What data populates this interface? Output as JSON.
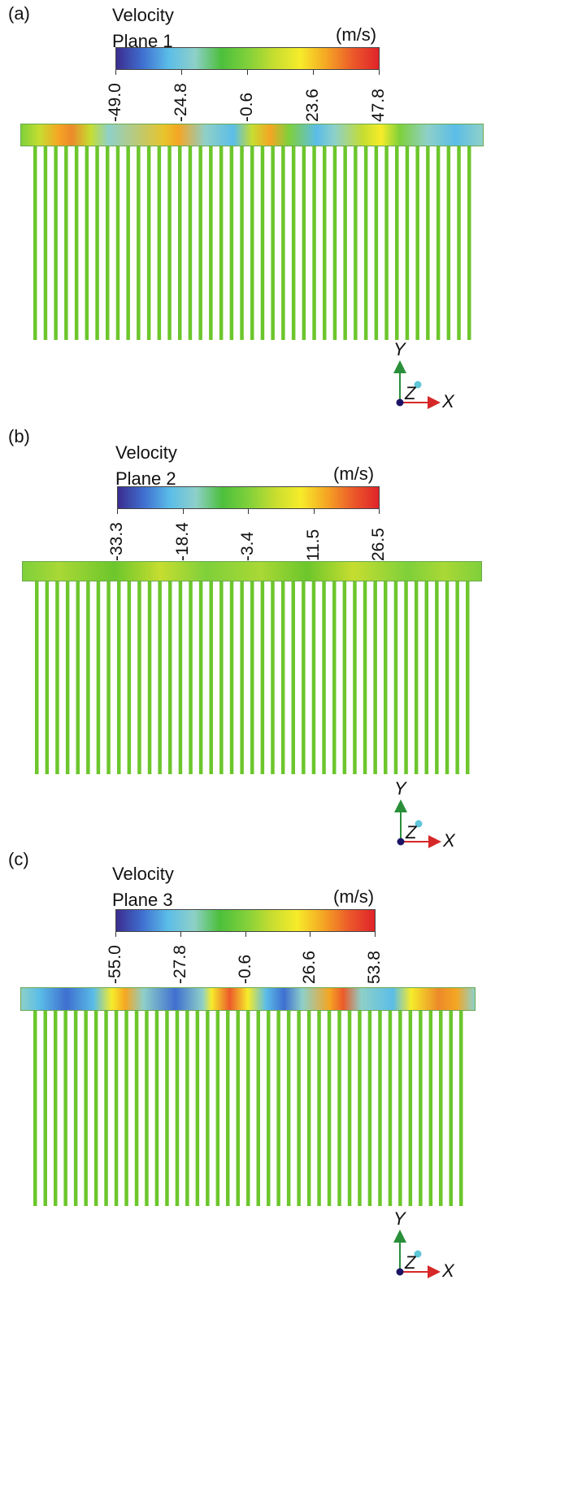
{
  "colors": {
    "scale": [
      "#3b2d8f",
      "#3f6fd0",
      "#5bbde8",
      "#8ed0c9",
      "#4cbf3c",
      "#7fd03a",
      "#c6dd30",
      "#f6ec2a",
      "#f5a623",
      "#ec5a2a",
      "#e0232a"
    ],
    "fin": "#6cc62c",
    "axis_y": "#2a8f3a",
    "axis_x": "#d62828",
    "origin": "#1b1464",
    "z_dot": "#5fc6d8"
  },
  "panels": [
    {
      "label": "(a)",
      "title_line1": "Velocity",
      "title_line2": "Plane 1",
      "unit": "(m/s)",
      "ticks": [
        "-49.0",
        "-24.8",
        "-0.6",
        "23.6",
        "47.8"
      ],
      "axis_x": "X",
      "axis_y": "Y",
      "axis_z": "Z",
      "fin_count": 43
    },
    {
      "label": "(b)",
      "title_line1": "Velocity",
      "title_line2": "Plane 2",
      "unit": "(m/s)",
      "ticks": [
        "-33.3",
        "-18.4",
        "-3.4",
        "11.5",
        "26.5"
      ],
      "axis_x": "X",
      "axis_y": "Y",
      "axis_z": "Z",
      "fin_count": 43
    },
    {
      "label": "(c)",
      "title_line1": "Velocity",
      "title_line2": "Plane 3",
      "unit": "(m/s)",
      "ticks": [
        "-55.0",
        "-27.8",
        "-0.6",
        "26.6",
        "53.8"
      ],
      "axis_x": "X",
      "axis_y": "Y",
      "axis_z": "Z",
      "fin_count": 43
    }
  ]
}
